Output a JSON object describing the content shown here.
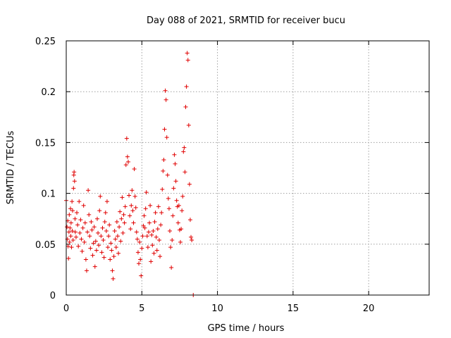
{
  "chart_data": {
    "type": "scatter",
    "title": "Day 088 of 2021, SRMTID for receiver bucu",
    "xlabel": "GPS time / hours",
    "ylabel": "SRMTID / TECUs",
    "xlim": [
      0,
      24
    ],
    "ylim": [
      0,
      0.25
    ],
    "x_ticks": [
      0,
      5,
      10,
      15,
      20
    ],
    "x_tick_labels": [
      "0",
      "5",
      "10",
      "15",
      "20"
    ],
    "y_ticks": [
      0,
      0.05,
      0.1,
      0.15,
      0.2,
      0.25
    ],
    "y_tick_labels": [
      "0",
      "0.05",
      "0.1",
      "0.15",
      "0.2",
      "0.25"
    ],
    "grid": true,
    "marker": "+",
    "color": "#e00000",
    "series": [
      {
        "name": "SRMTID",
        "points": [
          [
            0.0,
            0.093
          ],
          [
            0.05,
            0.067
          ],
          [
            0.08,
            0.055
          ],
          [
            0.1,
            0.073
          ],
          [
            0.12,
            0.048
          ],
          [
            0.15,
            0.036
          ],
          [
            0.18,
            0.062
          ],
          [
            0.2,
            0.079
          ],
          [
            0.22,
            0.052
          ],
          [
            0.25,
            0.066
          ],
          [
            0.28,
            0.085
          ],
          [
            0.3,
            0.058
          ],
          [
            0.32,
            0.071
          ],
          [
            0.35,
            0.047
          ],
          [
            0.38,
            0.092
          ],
          [
            0.4,
            0.063
          ],
          [
            0.42,
            0.083
          ],
          [
            0.45,
            0.054
          ],
          [
            0.48,
            0.105
          ],
          [
            0.5,
            0.118
          ],
          [
            0.52,
            0.121
          ],
          [
            0.55,
            0.112
          ],
          [
            0.58,
            0.075
          ],
          [
            0.6,
            0.062
          ],
          [
            0.65,
            0.057
          ],
          [
            0.7,
            0.081
          ],
          [
            0.75,
            0.069
          ],
          [
            0.8,
            0.048
          ],
          [
            0.85,
            0.092
          ],
          [
            0.9,
            0.061
          ],
          [
            0.95,
            0.074
          ],
          [
            1.0,
            0.055
          ],
          [
            1.05,
            0.043
          ],
          [
            1.1,
            0.066
          ],
          [
            1.15,
            0.088
          ],
          [
            1.2,
            0.052
          ],
          [
            1.25,
            0.071
          ],
          [
            1.3,
            0.035
          ],
          [
            1.35,
            0.024
          ],
          [
            1.4,
            0.062
          ],
          [
            1.45,
            0.103
          ],
          [
            1.5,
            0.079
          ],
          [
            1.55,
            0.058
          ],
          [
            1.6,
            0.046
          ],
          [
            1.65,
            0.072
          ],
          [
            1.7,
            0.064
          ],
          [
            1.75,
            0.039
          ],
          [
            1.8,
            0.051
          ],
          [
            1.85,
            0.067
          ],
          [
            1.9,
            0.028
          ],
          [
            1.95,
            0.053
          ],
          [
            2.0,
            0.044
          ],
          [
            2.05,
            0.075
          ],
          [
            2.1,
            0.061
          ],
          [
            2.15,
            0.049
          ],
          [
            2.2,
            0.083
          ],
          [
            2.25,
            0.097
          ],
          [
            2.3,
            0.058
          ],
          [
            2.35,
            0.042
          ],
          [
            2.4,
            0.066
          ],
          [
            2.45,
            0.054
          ],
          [
            2.5,
            0.037
          ],
          [
            2.55,
            0.072
          ],
          [
            2.6,
            0.081
          ],
          [
            2.65,
            0.063
          ],
          [
            2.7,
            0.092
          ],
          [
            2.75,
            0.047
          ],
          [
            2.8,
            0.058
          ],
          [
            2.85,
            0.069
          ],
          [
            2.9,
            0.035
          ],
          [
            2.95,
            0.051
          ],
          [
            3.0,
            0.044
          ],
          [
            3.05,
            0.024
          ],
          [
            3.1,
            0.016
          ],
          [
            3.15,
            0.038
          ],
          [
            3.2,
            0.063
          ],
          [
            3.25,
            0.055
          ],
          [
            3.3,
            0.047
          ],
          [
            3.35,
            0.072
          ],
          [
            3.4,
            0.058
          ],
          [
            3.45,
            0.041
          ],
          [
            3.5,
            0.067
          ],
          [
            3.55,
            0.082
          ],
          [
            3.6,
            0.053
          ],
          [
            3.65,
            0.075
          ],
          [
            3.7,
            0.096
          ],
          [
            3.75,
            0.061
          ],
          [
            3.8,
            0.079
          ],
          [
            3.85,
            0.071
          ],
          [
            3.9,
            0.087
          ],
          [
            3.95,
            0.128
          ],
          [
            4.0,
            0.154
          ],
          [
            4.05,
            0.136
          ],
          [
            4.1,
            0.131
          ],
          [
            4.15,
            0.098
          ],
          [
            4.2,
            0.078
          ],
          [
            4.25,
            0.065
          ],
          [
            4.3,
            0.088
          ],
          [
            4.35,
            0.103
          ],
          [
            4.4,
            0.083
          ],
          [
            4.45,
            0.071
          ],
          [
            4.5,
            0.124
          ],
          [
            4.55,
            0.097
          ],
          [
            4.6,
            0.086
          ],
          [
            4.65,
            0.062
          ],
          [
            4.7,
            0.055
          ],
          [
            4.75,
            0.042
          ],
          [
            4.8,
            0.031
          ],
          [
            4.85,
            0.052
          ],
          [
            4.9,
            0.035
          ],
          [
            4.95,
            0.019
          ],
          [
            5.0,
            0.046
          ],
          [
            5.05,
            0.058
          ],
          [
            5.1,
            0.068
          ],
          [
            5.15,
            0.078
          ],
          [
            5.2,
            0.066
          ],
          [
            5.25,
            0.085
          ],
          [
            5.3,
            0.101
          ],
          [
            5.35,
            0.058
          ],
          [
            5.4,
            0.047
          ],
          [
            5.45,
            0.062
          ],
          [
            5.5,
            0.071
          ],
          [
            5.55,
            0.088
          ],
          [
            5.6,
            0.033
          ],
          [
            5.65,
            0.059
          ],
          [
            5.7,
            0.049
          ],
          [
            5.75,
            0.063
          ],
          [
            5.8,
            0.041
          ],
          [
            5.85,
            0.072
          ],
          [
            5.9,
            0.081
          ],
          [
            5.95,
            0.057
          ],
          [
            6.0,
            0.044
          ],
          [
            6.05,
            0.065
          ],
          [
            6.1,
            0.087
          ],
          [
            6.15,
            0.054
          ],
          [
            6.2,
            0.038
          ],
          [
            6.25,
            0.069
          ],
          [
            6.3,
            0.081
          ],
          [
            6.35,
            0.104
          ],
          [
            6.4,
            0.122
          ],
          [
            6.45,
            0.133
          ],
          [
            6.5,
            0.163
          ],
          [
            6.55,
            0.201
          ],
          [
            6.6,
            0.192
          ],
          [
            6.65,
            0.155
          ],
          [
            6.7,
            0.118
          ],
          [
            6.75,
            0.095
          ],
          [
            6.8,
            0.085
          ],
          [
            6.85,
            0.063
          ],
          [
            6.9,
            0.047
          ],
          [
            6.95,
            0.027
          ],
          [
            7.0,
            0.054
          ],
          [
            7.05,
            0.078
          ],
          [
            7.1,
            0.105
          ],
          [
            7.15,
            0.138
          ],
          [
            7.2,
            0.129
          ],
          [
            7.25,
            0.112
          ],
          [
            7.3,
            0.093
          ],
          [
            7.35,
            0.087
          ],
          [
            7.4,
            0.071
          ],
          [
            7.45,
            0.088
          ],
          [
            7.5,
            0.064
          ],
          [
            7.55,
            0.052
          ],
          [
            7.6,
            0.065
          ],
          [
            7.65,
            0.083
          ],
          [
            7.7,
            0.097
          ],
          [
            7.75,
            0.141
          ],
          [
            7.8,
            0.145
          ],
          [
            7.85,
            0.121
          ],
          [
            7.9,
            0.185
          ],
          [
            7.95,
            0.205
          ],
          [
            8.0,
            0.238
          ],
          [
            8.05,
            0.231
          ],
          [
            8.1,
            0.167
          ],
          [
            8.15,
            0.109
          ],
          [
            8.2,
            0.074
          ],
          [
            8.25,
            0.057
          ],
          [
            8.3,
            0.054
          ],
          [
            8.4,
            0.0
          ]
        ]
      }
    ]
  }
}
